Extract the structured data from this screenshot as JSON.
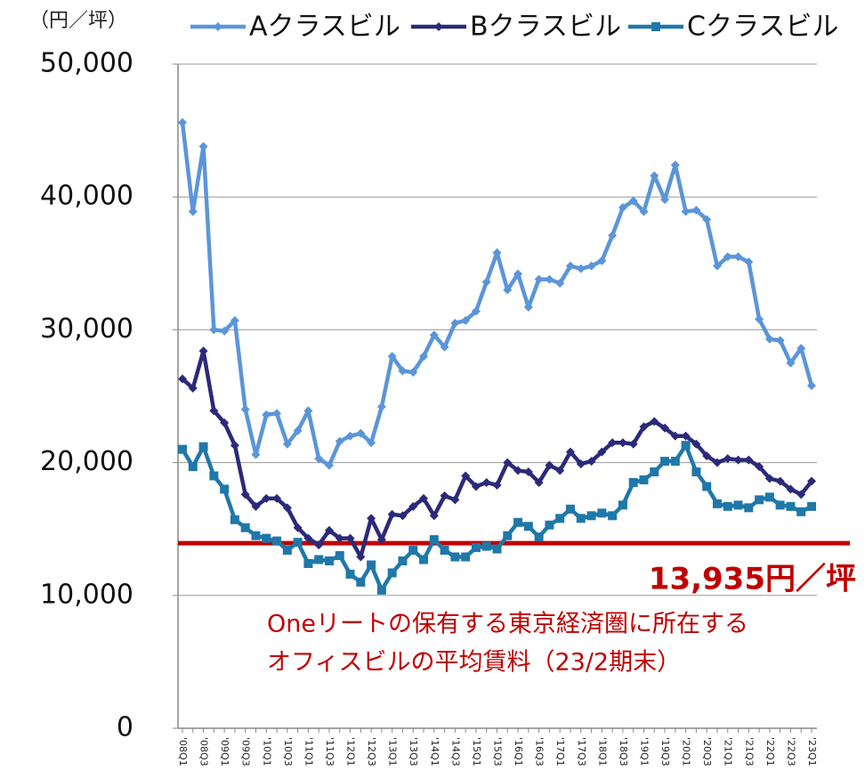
{
  "chart_data": {
    "type": "line",
    "y_unit_label": "（円／坪）",
    "categories": [
      "'08Q1",
      null,
      "'08Q3",
      null,
      "'09Q1",
      null,
      "'09Q3",
      null,
      "'10Q1",
      null,
      "'10Q3",
      null,
      "'11Q1",
      null,
      "'11Q3",
      null,
      "'12Q1",
      null,
      "'12Q3",
      null,
      "'13Q1",
      null,
      "'13Q3",
      null,
      "'14Q1",
      null,
      "'14Q3",
      null,
      "'15Q1",
      null,
      "'15Q3",
      null,
      "'16Q1",
      null,
      "'16Q3",
      null,
      "'17Q1",
      null,
      "'17Q3",
      null,
      "'18Q1",
      null,
      "'18Q3",
      null,
      "'19Q1",
      null,
      "'19Q3",
      null,
      "'20Q1",
      null,
      "'20Q3",
      null,
      "'21Q1",
      null,
      "'21Q3",
      null,
      "'22Q1",
      null,
      "'22Q3",
      null,
      "'23Q1"
    ],
    "series": [
      {
        "name": "Aクラスビル",
        "color": "#5b95d9",
        "marker": "diamond",
        "values": [
          45600,
          38900,
          43800,
          30000,
          29900,
          30700,
          24000,
          20600,
          23600,
          23700,
          21400,
          22400,
          23900,
          20300,
          19800,
          21600,
          22000,
          22200,
          21500,
          24200,
          28000,
          26900,
          26800,
          28000,
          29600,
          28700,
          30500,
          30700,
          31400,
          33600,
          35800,
          33000,
          34200,
          31700,
          33800,
          33800,
          33500,
          34800,
          34600,
          34800,
          35200,
          37100,
          39200,
          39700,
          38900,
          41600,
          39800,
          42400,
          38900,
          39000,
          38300,
          34800,
          35500,
          35500,
          35100,
          30800,
          29300,
          29200,
          27500,
          28600,
          25800
        ]
      },
      {
        "name": "Bクラスビル",
        "color": "#2b2a7a",
        "marker": "diamond",
        "values": [
          26300,
          25600,
          28400,
          23900,
          23000,
          21300,
          17600,
          16700,
          17300,
          17300,
          16600,
          15100,
          14300,
          13800,
          14900,
          14300,
          14300,
          12900,
          15800,
          14200,
          16100,
          16000,
          16700,
          17300,
          16000,
          17500,
          17200,
          19000,
          18200,
          18500,
          18300,
          20000,
          19400,
          19300,
          18500,
          19800,
          19400,
          20800,
          19900,
          20100,
          20800,
          21500,
          21500,
          21400,
          22700,
          23100,
          22600,
          22000,
          22000,
          21400,
          20500,
          20000,
          20300,
          20200,
          20200,
          19700,
          18800,
          18600,
          18000,
          17600,
          18600
        ]
      },
      {
        "name": "Cクラスビル",
        "color": "#1f78a9",
        "marker": "square",
        "values": [
          21000,
          19700,
          21200,
          19000,
          18000,
          15700,
          15100,
          14500,
          14300,
          14100,
          13400,
          14000,
          12400,
          12700,
          12600,
          13000,
          11600,
          11000,
          12300,
          10400,
          11700,
          12600,
          13400,
          12700,
          14200,
          13400,
          12900,
          12900,
          13600,
          13700,
          13500,
          14500,
          15500,
          15200,
          14400,
          15300,
          15800,
          16500,
          15800,
          16000,
          16200,
          16000,
          16800,
          18500,
          18700,
          19300,
          20100,
          20100,
          21300,
          19300,
          18200,
          16900,
          16700,
          16800,
          16600,
          17200,
          17400,
          16800,
          16700,
          16300,
          16700
        ]
      }
    ],
    "ylim": [
      0,
      50000
    ],
    "yticks": [
      0,
      {
        "value": 10000,
        "label": "10,000"
      },
      {
        "value": 20000,
        "label": "20,000"
      },
      {
        "value": 30000,
        "label": "30,000"
      },
      {
        "value": 40000,
        "label": "40,000"
      },
      {
        "value": 50000,
        "label": "50,000"
      }
    ],
    "grid": true,
    "legend": "top",
    "reference_line": {
      "value": 13935,
      "color": "#c00000",
      "label": "13,935円／坪",
      "note": [
        "Oneリートの保有する東京経済圏に所在する",
        "オフィスビルの平均賃料（23/2期末）"
      ]
    }
  }
}
